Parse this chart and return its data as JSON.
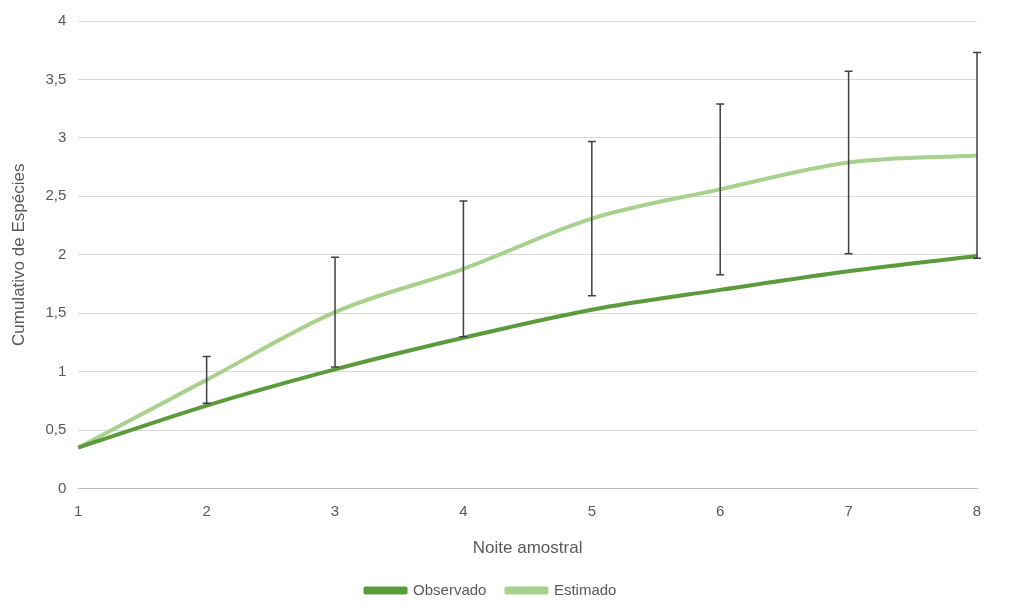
{
  "chart_data": {
    "type": "line",
    "xlabel": "Noite amostral",
    "ylabel": "Cumulativo de Espécies",
    "categories": [
      "1",
      "2",
      "3",
      "4",
      "5",
      "6",
      "7",
      "8"
    ],
    "series": [
      {
        "name": "Observado",
        "color": "#5b9b3c",
        "values": [
          0.35,
          0.71,
          1.02,
          1.29,
          1.53,
          1.7,
          1.86,
          1.99
        ]
      },
      {
        "name": "Estimado",
        "color": "#a9d18e",
        "values": [
          0.35,
          0.93,
          1.51,
          1.88,
          2.31,
          2.56,
          2.79,
          2.85
        ],
        "errors": [
          null,
          0.2,
          0.47,
          0.58,
          0.66,
          0.73,
          0.78,
          0.88
        ]
      }
    ],
    "ylim": [
      0,
      4
    ],
    "yticks": [
      {
        "value": 0,
        "label": "0"
      },
      {
        "value": 0.5,
        "label": "0,5"
      },
      {
        "value": 1,
        "label": "1"
      },
      {
        "value": 1.5,
        "label": "1,5"
      },
      {
        "value": 2,
        "label": "2"
      },
      {
        "value": 2.5,
        "label": "2,5"
      },
      {
        "value": 3,
        "label": "3"
      },
      {
        "value": 3.5,
        "label": "3,5"
      },
      {
        "value": 4,
        "label": "4"
      }
    ],
    "grid": "y",
    "legend": "bottom",
    "marker": "none",
    "line_style": "solid"
  }
}
